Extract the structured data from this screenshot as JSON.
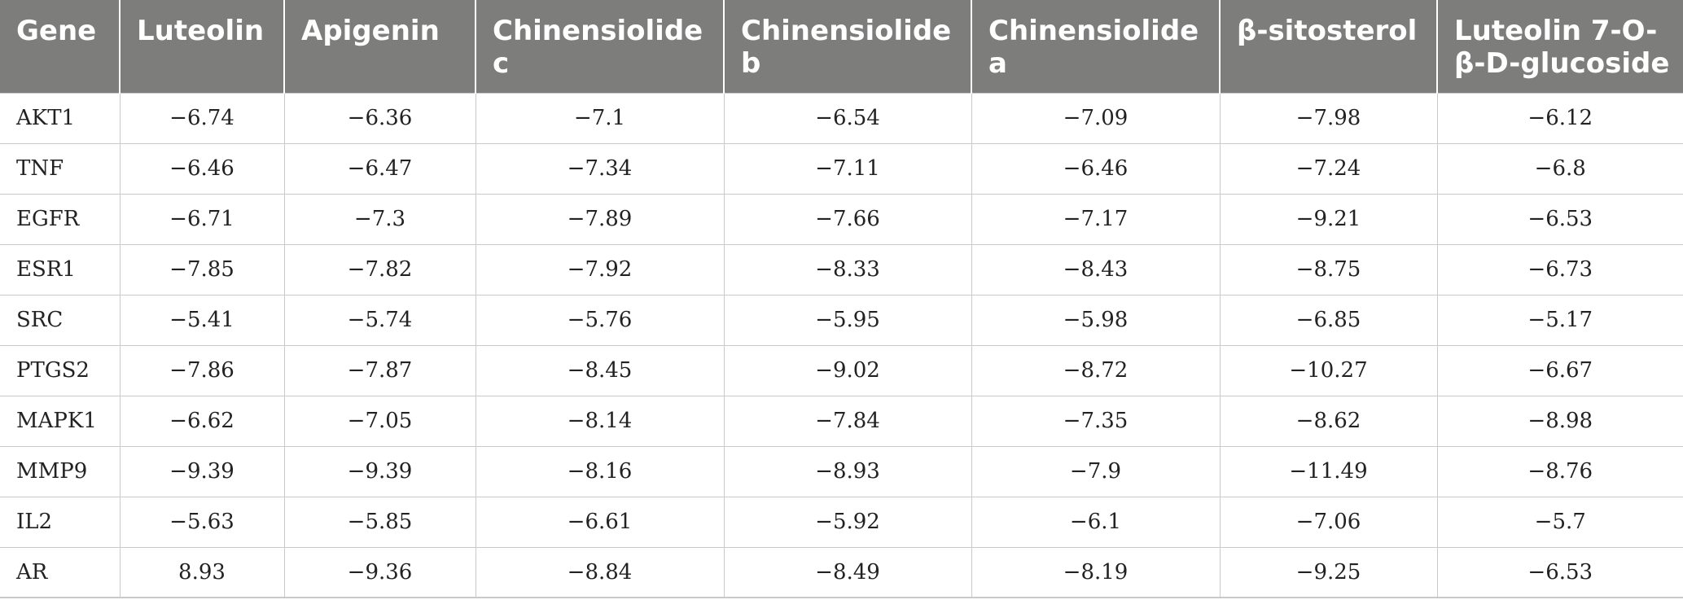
{
  "table": {
    "headers": [
      "Gene",
      "Luteolin",
      "Apigenin",
      "Chinensiolide c",
      "Chinensiolide b",
      "Chinensiolide a",
      "β-sitosterol",
      "Luteolin 7-O-β-D-glucoside"
    ],
    "rows": [
      [
        "AKT1",
        "−6.74",
        "−6.36",
        "−7.1",
        "−6.54",
        "−7.09",
        "−7.98",
        "−6.12"
      ],
      [
        "TNF",
        "−6.46",
        "−6.47",
        "−7.34",
        "−7.11",
        "−6.46",
        "−7.24",
        "−6.8"
      ],
      [
        "EGFR",
        "−6.71",
        "−7.3",
        "−7.89",
        "−7.66",
        "−7.17",
        "−9.21",
        "−6.53"
      ],
      [
        "ESR1",
        "−7.85",
        "−7.82",
        "−7.92",
        "−8.33",
        "−8.43",
        "−8.75",
        "−6.73"
      ],
      [
        "SRC",
        "−5.41",
        "−5.74",
        "−5.76",
        "−5.95",
        "−5.98",
        "−6.85",
        "−5.17"
      ],
      [
        "PTGS2",
        "−7.86",
        "−7.87",
        "−8.45",
        "−9.02",
        "−8.72",
        "−10.27",
        "−6.67"
      ],
      [
        "MAPK1",
        "−6.62",
        "−7.05",
        "−8.14",
        "−7.84",
        "−7.35",
        "−8.62",
        "−8.98"
      ],
      [
        "MMP9",
        "−9.39",
        "−9.39",
        "−8.16",
        "−8.93",
        "−7.9",
        "−11.49",
        "−8.76"
      ],
      [
        "IL2",
        "−5.63",
        "−5.85",
        "−6.61",
        "−5.92",
        "−6.1",
        "−7.06",
        "−5.7"
      ],
      [
        "AR",
        "8.93",
        "−9.36",
        "−8.84",
        "−8.49",
        "−8.19",
        "−9.25",
        "−6.53"
      ]
    ]
  }
}
